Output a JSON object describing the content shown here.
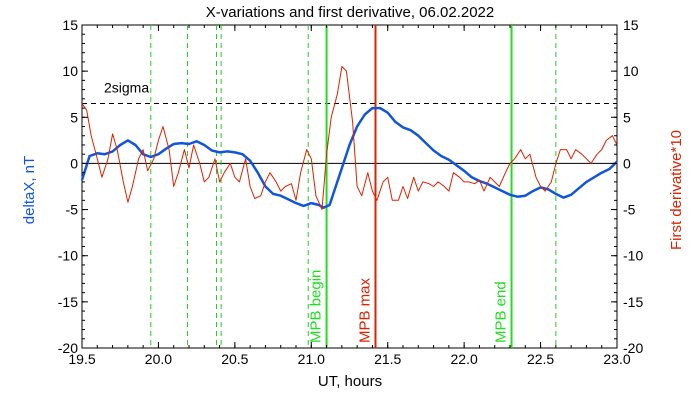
{
  "chart_data": {
    "type": "line",
    "title": "X-variations and first derivative, 06.02.2022",
    "xlabel": "UT, hours",
    "ylabel_left": "deltaX, nT",
    "ylabel_right": "First derivative*10",
    "xlim": [
      19.5,
      23.0
    ],
    "ylim": [
      -20,
      15
    ],
    "xticks": [
      "19.5",
      "20.0",
      "20.5",
      "21.0",
      "21.5",
      "22.0",
      "22.5",
      "23.0"
    ],
    "yticks": [
      "15",
      "10",
      "5",
      "0",
      "-5",
      "-10",
      "-15",
      "-20"
    ],
    "threshold": {
      "label": "2sigma",
      "value": 6.5
    },
    "colors": {
      "deltax": "#1155dd",
      "derivative": "#dd2200",
      "mpb_boundary": "#22dd22",
      "mpb_max": "#dd2200",
      "markers": "#22cc22"
    },
    "markers": [
      19.95,
      20.19,
      20.38,
      20.41,
      20.98,
      22.6
    ],
    "events": [
      {
        "label": "MPB begin",
        "x": 21.1,
        "color": "#22dd22"
      },
      {
        "label": "MPB max",
        "x": 21.42,
        "color": "#dd2200"
      },
      {
        "label": "MPB end",
        "x": 22.31,
        "color": "#22dd22"
      }
    ],
    "series": [
      {
        "name": "deltaX",
        "color": "#1155dd",
        "x": [
          19.5,
          19.55,
          19.6,
          19.65,
          19.7,
          19.75,
          19.8,
          19.85,
          19.9,
          19.95,
          20.0,
          20.05,
          20.1,
          20.15,
          20.2,
          20.25,
          20.3,
          20.35,
          20.4,
          20.45,
          20.5,
          20.55,
          20.6,
          20.65,
          20.7,
          20.75,
          20.8,
          20.85,
          20.9,
          20.95,
          21.0,
          21.05,
          21.08,
          21.12,
          21.15,
          21.2,
          21.25,
          21.3,
          21.35,
          21.4,
          21.45,
          21.5,
          21.55,
          21.6,
          21.65,
          21.7,
          21.75,
          21.8,
          21.85,
          21.9,
          21.95,
          22.0,
          22.05,
          22.1,
          22.15,
          22.2,
          22.25,
          22.3,
          22.35,
          22.4,
          22.45,
          22.5,
          22.55,
          22.6,
          22.65,
          22.7,
          22.75,
          22.8,
          22.85,
          22.9,
          22.95,
          23.0
        ],
        "values": [
          -1.8,
          0.8,
          1.1,
          1.0,
          1.3,
          2.0,
          2.5,
          2.0,
          1.0,
          0.7,
          1.0,
          1.6,
          2.1,
          2.2,
          2.1,
          2.4,
          2.0,
          1.4,
          1.2,
          1.3,
          1.2,
          1.0,
          0.3,
          -1.0,
          -2.5,
          -3.3,
          -3.5,
          -3.9,
          -4.3,
          -4.6,
          -4.3,
          -4.5,
          -4.8,
          -4.5,
          -3.0,
          -0.5,
          2.0,
          4.0,
          5.3,
          6.0,
          6.0,
          5.5,
          4.5,
          3.9,
          3.6,
          3.0,
          2.2,
          1.4,
          0.8,
          0.4,
          -0.2,
          -0.8,
          -1.5,
          -1.9,
          -2.2,
          -2.6,
          -3.0,
          -3.4,
          -3.6,
          -3.5,
          -3.0,
          -2.6,
          -2.8,
          -3.3,
          -3.7,
          -3.4,
          -2.7,
          -2.0,
          -1.5,
          -1.0,
          -0.6,
          0.2
        ]
      },
      {
        "name": "First derivative*10",
        "color": "#dd2200",
        "x": [
          19.5,
          19.53,
          19.56,
          19.6,
          19.63,
          19.67,
          19.7,
          19.73,
          19.77,
          19.8,
          19.83,
          19.87,
          19.9,
          19.93,
          19.97,
          20.0,
          20.03,
          20.07,
          20.1,
          20.13,
          20.17,
          20.2,
          20.23,
          20.27,
          20.3,
          20.33,
          20.37,
          20.4,
          20.43,
          20.47,
          20.5,
          20.53,
          20.57,
          20.6,
          20.63,
          20.67,
          20.7,
          20.73,
          20.77,
          20.8,
          20.83,
          20.87,
          20.9,
          20.93,
          20.97,
          21.0,
          21.03,
          21.07,
          21.1,
          21.13,
          21.17,
          21.2,
          21.23,
          21.27,
          21.3,
          21.33,
          21.37,
          21.4,
          21.43,
          21.47,
          21.5,
          21.53,
          21.57,
          21.6,
          21.63,
          21.67,
          21.7,
          21.73,
          21.77,
          21.8,
          21.83,
          21.87,
          21.9,
          21.93,
          21.97,
          22.0,
          22.03,
          22.07,
          22.1,
          22.13,
          22.17,
          22.2,
          22.23,
          22.27,
          22.3,
          22.33,
          22.37,
          22.4,
          22.43,
          22.47,
          22.5,
          22.53,
          22.57,
          22.6,
          22.63,
          22.67,
          22.7,
          22.73,
          22.77,
          22.8,
          22.83,
          22.87,
          22.9,
          22.93,
          22.97,
          23.0
        ],
        "values": [
          6.5,
          5.8,
          3.0,
          0.5,
          -1.5,
          0.5,
          3.2,
          1.5,
          -2.0,
          -4.2,
          -2.5,
          0.5,
          1.5,
          -0.8,
          0.5,
          2.5,
          4.0,
          1.5,
          -2.5,
          -1.0,
          1.5,
          -0.5,
          2.0,
          0.0,
          -2.0,
          -1.5,
          0.5,
          -2.0,
          -1.0,
          0.0,
          -1.5,
          -2.0,
          0.5,
          -2.5,
          -3.8,
          -3.5,
          -2.0,
          -1.0,
          -2.0,
          -3.0,
          -2.5,
          -2.2,
          -4.0,
          -1.0,
          1.5,
          0.5,
          -3.5,
          -5.0,
          1.0,
          5.0,
          7.5,
          10.5,
          10.0,
          4.5,
          -2.5,
          -3.5,
          -1.0,
          -3.0,
          -4.0,
          -2.0,
          -1.5,
          -4.0,
          -4.0,
          -2.5,
          -3.8,
          -1.5,
          -3.0,
          -2.0,
          -2.2,
          -2.5,
          -2.0,
          -2.5,
          -3.0,
          -1.0,
          -1.5,
          -2.0,
          -2.0,
          -2.2,
          -1.8,
          -3.0,
          -1.5,
          -2.0,
          -2.5,
          -1.0,
          0.0,
          0.5,
          1.5,
          0.5,
          1.0,
          -1.5,
          -2.5,
          -3.0,
          -2.0,
          0.0,
          1.5,
          1.5,
          0.5,
          1.5,
          1.0,
          0.5,
          0.0,
          1.0,
          1.5,
          2.5,
          3.0,
          2.0
        ]
      }
    ]
  }
}
